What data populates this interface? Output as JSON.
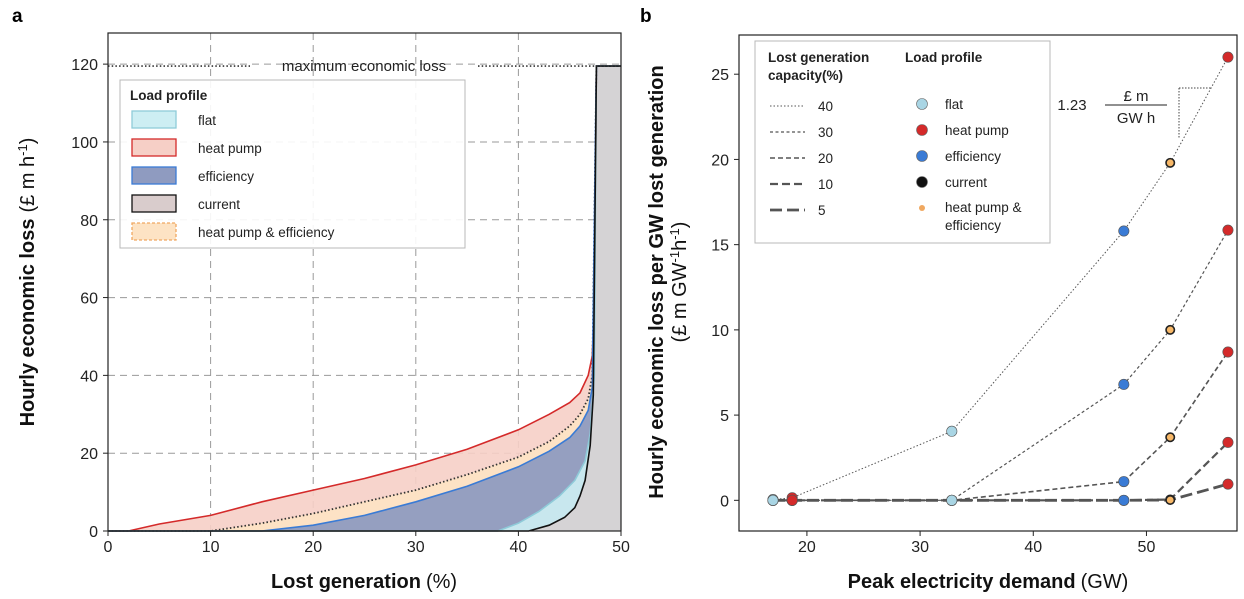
{
  "chart_data": [
    {
      "panel": "a",
      "type": "area",
      "ylabel": {
        "bold": "Hourly economic loss",
        "unit": "(£ m h-1)"
      },
      "xlabel": {
        "bold": "Lost generation",
        "unit": "(%)"
      },
      "xlim": [
        0,
        50
      ],
      "ylim": [
        0,
        128
      ],
      "xticks": [
        0,
        10,
        20,
        30,
        40,
        50
      ],
      "yticks": [
        0,
        20,
        40,
        60,
        80,
        100,
        120
      ],
      "grid": true,
      "legend_title": "Load profile",
      "legend_placement": "upper-left",
      "reference_line": {
        "y": 119.5,
        "label": "maximum economic loss"
      },
      "series": [
        {
          "name": "flat",
          "fill": "#cdeef3",
          "stroke": "#8fcbd9",
          "x": [
            0,
            38,
            40,
            42,
            44,
            45.5,
            46.5,
            47,
            47.4,
            47.6,
            50
          ],
          "y": [
            0,
            0,
            2,
            5,
            9,
            13,
            18,
            25,
            40,
            119.5,
            119.5
          ]
        },
        {
          "name": "heat pump",
          "fill": "#f6cfc6",
          "stroke": "#d42a2a",
          "x": [
            0,
            2,
            5,
            10,
            15,
            20,
            25,
            30,
            35,
            40,
            43,
            45,
            46,
            46.8,
            47.2,
            47.4,
            47.6,
            50
          ],
          "y": [
            0,
            0,
            1.8,
            4,
            7.5,
            10.5,
            13.5,
            17,
            21,
            26,
            30,
            33,
            35.5,
            40,
            45,
            60,
            119.5,
            119.5
          ]
        },
        {
          "name": "efficiency",
          "fill": "#8f9bc0",
          "stroke": "#3a7bd5",
          "x": [
            0,
            15,
            20,
            25,
            30,
            35,
            40,
            43,
            45,
            46,
            46.8,
            47.2,
            47.6,
            50
          ],
          "y": [
            0,
            0,
            1.5,
            4,
            7.5,
            11.5,
            16.5,
            20.5,
            24,
            27,
            31,
            37,
            119.5,
            119.5
          ]
        },
        {
          "name": "current",
          "fill": "#d9cccc",
          "stroke": "#111111",
          "x": [
            0,
            41,
            43,
            44.5,
            45.5,
            46,
            46.5,
            47,
            47.3,
            47.6,
            50
          ],
          "y": [
            0,
            0,
            1.5,
            3.5,
            6,
            9,
            13,
            22,
            35,
            119.5,
            119.5
          ]
        },
        {
          "name": "heat pump & efficiency",
          "fill": "#fde3c4",
          "stroke": "#f0a860",
          "x": [
            0,
            10,
            15,
            20,
            25,
            30,
            35,
            40,
            43,
            45,
            46,
            46.8,
            47.2,
            47.6,
            50
          ],
          "y": [
            0,
            0,
            2,
            4.5,
            7.5,
            10.5,
            14.5,
            19,
            23,
            27,
            30,
            34,
            40,
            119.5,
            119.5
          ]
        }
      ]
    },
    {
      "panel": "b",
      "type": "scatter",
      "ylabel": {
        "bold": "Hourly economic loss per GW lost generation",
        "unit": "(£ m GW-1h-1)"
      },
      "xlabel": {
        "bold": "Peak electricity demand",
        "unit": "(GW)"
      },
      "xlim": [
        14,
        58
      ],
      "ylim": [
        -1.8,
        27.3
      ],
      "xticks": [
        20,
        30,
        40,
        50
      ],
      "yticks": [
        0,
        5,
        10,
        15,
        20,
        25
      ],
      "grid": false,
      "legend_placement": "upper-left",
      "legend_line_title": [
        "Lost generation",
        "capacity(%)"
      ],
      "legend_marker_title": "Load profile",
      "profiles": [
        {
          "name": "flat",
          "x": 17,
          "color": "#a9d5e4"
        },
        {
          "name": "heat pump",
          "x": 18.7,
          "color": "#d42a2a"
        },
        {
          "name": "flat",
          "x": 32.8,
          "color": "#a9d5e4"
        },
        {
          "name": "efficiency",
          "x": 48,
          "color": "#3a7bd5"
        },
        {
          "name": "heat pump & efficiency",
          "x": 52.1,
          "color": "#f0a860"
        },
        {
          "name": "heat pump",
          "x": 57.2,
          "color": "#d42a2a"
        }
      ],
      "series": [
        {
          "name": "40",
          "dash": "1.5,2",
          "width": 1,
          "values": [
            0.05,
            0.15,
            4.05,
            15.8,
            19.8,
            26
          ]
        },
        {
          "name": "30",
          "dash": "3,2.5",
          "width": 1.2,
          "values": [
            0,
            0,
            0,
            6.8,
            10,
            15.85
          ]
        },
        {
          "name": "20",
          "dash": "5,3",
          "width": 1.6,
          "values": [
            0,
            0,
            0,
            1.1,
            3.7,
            8.7
          ]
        },
        {
          "name": "10",
          "dash": "8,4",
          "width": 2.2,
          "values": [
            0,
            0,
            0,
            0,
            0.05,
            3.4
          ]
        },
        {
          "name": "5",
          "dash": "12,5",
          "width": 2.8,
          "values": [
            0,
            0,
            0,
            0,
            0.02,
            0.95
          ]
        }
      ],
      "legend_markers": [
        {
          "name": "flat",
          "color": "#a9d5e4"
        },
        {
          "name": "heat pump",
          "color": "#d42a2a"
        },
        {
          "name": "efficiency",
          "color": "#3a7bd5"
        },
        {
          "name": "current",
          "color": "#111111"
        },
        {
          "name": "heat pump & efficiency",
          "color": "#f0a860"
        }
      ],
      "annotation": {
        "value": "1.23",
        "numerator": "£ m",
        "denominator": "GW h"
      }
    }
  ]
}
